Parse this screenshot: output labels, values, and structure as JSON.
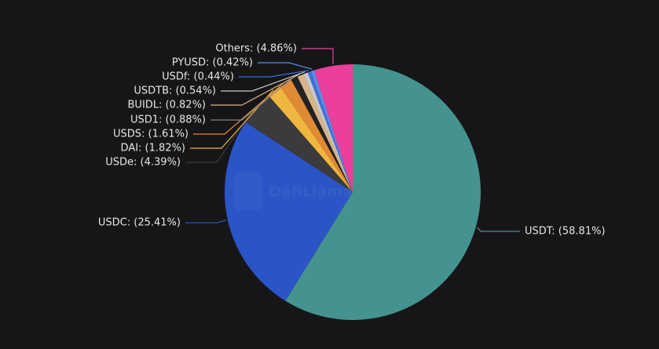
{
  "chart_data": {
    "type": "pie",
    "watermark": "DefiLlama",
    "values": [
      58.81,
      25.41,
      4.39,
      1.82,
      1.61,
      0.88,
      0.82,
      0.54,
      0.44,
      0.42,
      4.86
    ],
    "value_labels": [
      "USDT: (58.81%)",
      "USDC: (25.41%)",
      "USDe: (4.39%)",
      "DAI: (1.82%)",
      "USDS: (1.61%)",
      "USD1: (0.88%)",
      "BUIDL: (0.82%)",
      "USDTB: (0.54%)",
      "USDf: (0.44%)",
      "PYUSD: (0.42%)",
      "Others: (4.86%)"
    ],
    "colors": [
      "#45938f",
      "#2b55c6",
      "#3b3b3d",
      "#f0b740",
      "#e08a35",
      "#222224",
      "#d8b48a",
      "#c9c9c9",
      "#3f70d9",
      "#5b8ee8",
      "#ea3f9c"
    ]
  }
}
